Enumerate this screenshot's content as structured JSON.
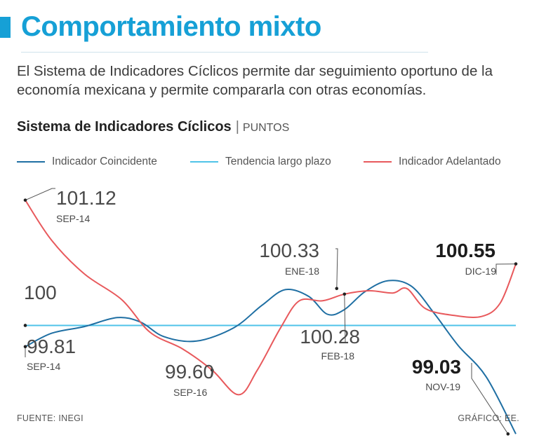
{
  "header": {
    "title": "Comportamiento mixto",
    "subtitle": "El Sistema de Indicadores Cíclicos permite dar seguimiento oportuno de la economía mexicana y permite compararla con otras economías."
  },
  "chart_header": {
    "title": "Sistema de Indicadores Cíclicos",
    "separator": "|",
    "unit": "PUNTOS"
  },
  "legend": [
    {
      "label": "Indicador Coincidente",
      "color": "#1f6fa3"
    },
    {
      "label": "Tendencia largo plazo",
      "color": "#4fc3e8"
    },
    {
      "label": "Indicador Adelantado",
      "color": "#e8595c"
    }
  ],
  "footer": {
    "source": "FUENTE: INEGI",
    "credit": "GRÁFICO: EE."
  },
  "chart_data": {
    "type": "line",
    "title": "Sistema de Indicadores Cíclicos",
    "ylabel": "PUNTOS",
    "xlim": [
      2014.667,
      2019.917
    ],
    "ylim": [
      98.7,
      101.5
    ],
    "grid": false,
    "legend_position": "top",
    "series": [
      {
        "name": "Indicador Coincidente",
        "color": "#1f6fa3",
        "points": [
          [
            2014.667,
            99.81
          ],
          [
            2014.95,
            99.93
          ],
          [
            2015.3,
            99.99
          ],
          [
            2015.65,
            100.07
          ],
          [
            2015.9,
            100.03
          ],
          [
            2016.15,
            99.9
          ],
          [
            2016.5,
            99.86
          ],
          [
            2016.9,
            99.98
          ],
          [
            2017.2,
            100.18
          ],
          [
            2017.45,
            100.32
          ],
          [
            2017.7,
            100.26
          ],
          [
            2017.9,
            100.1
          ],
          [
            2018.08,
            100.14
          ],
          [
            2018.3,
            100.3
          ],
          [
            2018.55,
            100.4
          ],
          [
            2018.8,
            100.35
          ],
          [
            2019.05,
            100.1
          ],
          [
            2019.3,
            99.82
          ],
          [
            2019.6,
            99.54
          ],
          [
            2019.917,
            99.03
          ]
        ]
      },
      {
        "name": "Tendencia largo plazo",
        "color": "#4fc3e8",
        "points": [
          [
            2014.667,
            100.0
          ],
          [
            2019.917,
            100.0
          ]
        ]
      },
      {
        "name": "Indicador Adelantado",
        "color": "#e8595c",
        "points": [
          [
            2014.667,
            101.12
          ],
          [
            2014.95,
            100.76
          ],
          [
            2015.3,
            100.46
          ],
          [
            2015.7,
            100.23
          ],
          [
            2016.0,
            99.94
          ],
          [
            2016.35,
            99.79
          ],
          [
            2016.667,
            99.6
          ],
          [
            2016.95,
            99.38
          ],
          [
            2017.15,
            99.6
          ],
          [
            2017.4,
            99.98
          ],
          [
            2017.6,
            100.22
          ],
          [
            2017.85,
            100.22
          ],
          [
            2018.083,
            100.28
          ],
          [
            2018.35,
            100.31
          ],
          [
            2018.6,
            100.29
          ],
          [
            2018.75,
            100.33
          ],
          [
            2018.95,
            100.15
          ],
          [
            2019.25,
            100.09
          ],
          [
            2019.55,
            100.08
          ],
          [
            2019.75,
            100.2
          ],
          [
            2019.917,
            100.55
          ]
        ]
      }
    ],
    "annotations": [
      {
        "value": "101.12",
        "date": "SEP-14",
        "x": 2014.667,
        "y": 101.12,
        "series": "Indicador Adelantado",
        "bold": false
      },
      {
        "value": "100",
        "date": "",
        "x": 2014.667,
        "y": 100.0,
        "series": "Tendencia largo plazo",
        "bold": false
      },
      {
        "value": "99.81",
        "date": "SEP-14",
        "x": 2014.667,
        "y": 99.81,
        "series": "Indicador Coincidente",
        "bold": false
      },
      {
        "value": "99.60",
        "date": "SEP-16",
        "x": 2016.667,
        "y": 99.6,
        "series": "Indicador Adelantado",
        "bold": false
      },
      {
        "value": "100.33",
        "date": "ENE-18",
        "x": 2018.0,
        "y": 100.33,
        "series": "Indicador Coincidente",
        "bold": false
      },
      {
        "value": "100.28",
        "date": "FEB-18",
        "x": 2018.083,
        "y": 100.28,
        "series": "Indicador Adelantado",
        "bold": false
      },
      {
        "value": "100.55",
        "date": "DIC-19",
        "x": 2019.917,
        "y": 100.55,
        "series": "Indicador Adelantado",
        "bold": true
      },
      {
        "value": "99.03",
        "date": "NOV-19",
        "x": 2019.833,
        "y": 99.03,
        "series": "Indicador Coincidente",
        "bold": true
      }
    ]
  }
}
